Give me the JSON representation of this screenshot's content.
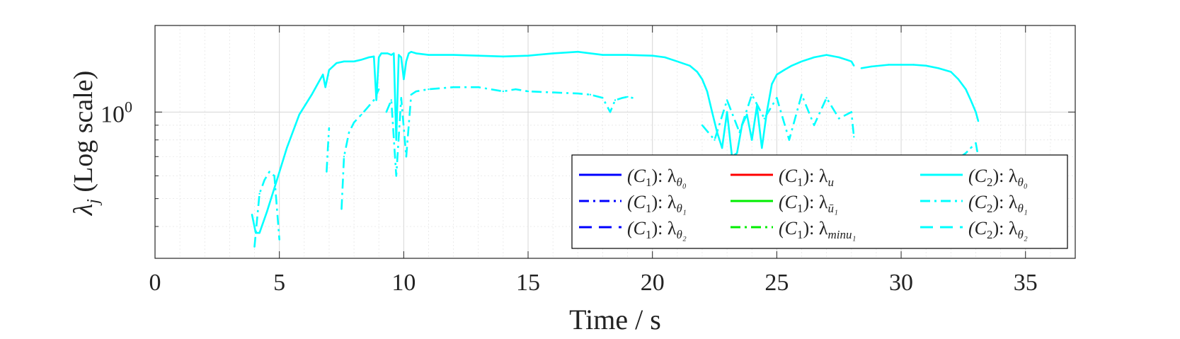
{
  "chart_data": {
    "type": "line",
    "title": "",
    "xlabel": "Time / s",
    "ylabel": "λ_j (Log scale)",
    "ylabel_parts": {
      "symbol": "λ",
      "sub": "j",
      "rest": " (Log scale)"
    },
    "xlim": [
      0,
      37
    ],
    "ylim": [
      0.31,
      2.0
    ],
    "yscale": "log",
    "x_ticks": [
      0,
      5,
      10,
      15,
      20,
      25,
      30,
      35
    ],
    "x_tick_labels": [
      "0",
      "5",
      "10",
      "15",
      "20",
      "25",
      "30",
      "35"
    ],
    "y_tick_label": {
      "base": "10",
      "exp": "0",
      "value": 1.0
    },
    "grid": true,
    "legend_position": "lower-right",
    "colors": {
      "C1_blue": "#0000ff",
      "C1_red": "#ff0000",
      "C1_green": "#00ee00",
      "C2_cyan": "#00ffff"
    },
    "legend": [
      {
        "id": "c1-t0",
        "color": "#0000ff",
        "dash": "solid",
        "pre": "(C",
        "pre_sub": "1",
        "mid": "): λ",
        "sub": "θ₀"
      },
      {
        "id": "c1-t1",
        "color": "#0000ff",
        "dash": "dashdot",
        "pre": "(C",
        "pre_sub": "1",
        "mid": "): λ",
        "sub": "θ₁"
      },
      {
        "id": "c1-t2",
        "color": "#0000ff",
        "dash": "dashed",
        "pre": "(C",
        "pre_sub": "1",
        "mid": "): λ",
        "sub": "θ₂"
      },
      {
        "id": "c1-u",
        "color": "#ff0000",
        "dash": "solid",
        "pre": "(C",
        "pre_sub": "1",
        "mid": "): λ",
        "sub": "u"
      },
      {
        "id": "c1-ubar",
        "color": "#00ee00",
        "dash": "solid",
        "pre": "(C",
        "pre_sub": "1",
        "mid": "): λ",
        "sub": "ū₁"
      },
      {
        "id": "c1-minu",
        "color": "#00ee00",
        "dash": "dashdot",
        "pre": "(C",
        "pre_sub": "1",
        "mid": "): λ",
        "sub": "minu₁"
      },
      {
        "id": "c2-t0",
        "color": "#00ffff",
        "dash": "solid",
        "pre": "(C",
        "pre_sub": "2",
        "mid": "): λ",
        "sub": "θ₀"
      },
      {
        "id": "c2-t1",
        "color": "#00ffff",
        "dash": "dashdot",
        "pre": "(C",
        "pre_sub": "2",
        "mid": "): λ",
        "sub": "θ₁"
      },
      {
        "id": "c2-t2",
        "color": "#00ffff",
        "dash": "dashed",
        "pre": "(C",
        "pre_sub": "2",
        "mid": "): λ",
        "sub": "θ₂"
      }
    ],
    "series": [
      {
        "name": "(C2): λθ0",
        "color": "#00ffff",
        "dash": "solid",
        "segments": [
          {
            "x": [
              3.9,
              4.05,
              4.2,
              4.5,
              4.9,
              5.3,
              5.8,
              6.3,
              6.6,
              6.75,
              6.85,
              7.0,
              7.3,
              7.6,
              8.0,
              8.3,
              8.6,
              8.8,
              8.9,
              9.0,
              9.1,
              9.2,
              9.35,
              9.5,
              9.6,
              9.7,
              9.8,
              9.9,
              10.0,
              10.1,
              10.2,
              10.3,
              10.5,
              11.0,
              12.0,
              13.0,
              14.0,
              15.0,
              16.0,
              17.0,
              18.0,
              19.0,
              20.0,
              20.5,
              21.0,
              21.5,
              21.8,
              22.0,
              22.2,
              22.4,
              22.6,
              22.8,
              23.0,
              23.2,
              23.4,
              23.6,
              23.8,
              24.0,
              24.2,
              24.4,
              24.6,
              24.8,
              25.0,
              25.3,
              25.6,
              26.0,
              26.5,
              27.0,
              27.5,
              27.8,
              28.0,
              28.1
            ],
            "y": [
              0.44,
              0.38,
              0.38,
              0.45,
              0.58,
              0.75,
              0.98,
              1.15,
              1.28,
              1.35,
              1.22,
              1.4,
              1.48,
              1.5,
              1.5,
              1.52,
              1.55,
              1.56,
              1.1,
              1.55,
              1.6,
              1.6,
              1.6,
              1.58,
              1.6,
              0.8,
              1.58,
              1.55,
              1.3,
              1.5,
              1.6,
              1.62,
              1.6,
              1.58,
              1.58,
              1.57,
              1.56,
              1.57,
              1.6,
              1.62,
              1.58,
              1.58,
              1.57,
              1.55,
              1.5,
              1.45,
              1.38,
              1.3,
              1.18,
              1.0,
              0.85,
              0.75,
              1.0,
              0.7,
              0.72,
              0.9,
              0.98,
              0.8,
              1.05,
              0.75,
              1.0,
              1.25,
              1.35,
              1.4,
              1.45,
              1.5,
              1.55,
              1.58,
              1.55,
              1.52,
              1.5,
              1.45
            ]
          },
          {
            "x": [
              28.4,
              28.8,
              29.5,
              30.0,
              30.5,
              31.0,
              31.5,
              32.0,
              32.3,
              32.6,
              32.8,
              33.0,
              33.1
            ],
            "y": [
              1.42,
              1.44,
              1.46,
              1.46,
              1.46,
              1.45,
              1.42,
              1.38,
              1.3,
              1.2,
              1.1,
              1.0,
              0.93
            ]
          }
        ]
      },
      {
        "name": "(C2): λθ1",
        "color": "#00ffff",
        "dash": "dashdot",
        "segments": [
          {
            "x": [
              4.0,
              4.2,
              4.4,
              4.6,
              4.8,
              5.0
            ],
            "y": [
              0.34,
              0.52,
              0.58,
              0.62,
              0.6,
              0.36
            ]
          },
          {
            "x": [
              6.9,
              6.95,
              7.0
            ],
            "y": [
              0.62,
              0.75,
              0.88
            ]
          },
          {
            "x": [
              7.5,
              7.6,
              7.8,
              8.0,
              8.3,
              8.6,
              8.8,
              9.0
            ],
            "y": [
              0.46,
              0.7,
              0.85,
              0.92,
              0.98,
              1.05,
              1.1,
              1.2
            ]
          },
          {
            "x": [
              9.3,
              9.5,
              9.7,
              9.9,
              10.1,
              10.3,
              10.5,
              11.0,
              12.0,
              13.0,
              14.0,
              14.5,
              15.0,
              16.0,
              17.0,
              17.5,
              18.0,
              18.3,
              18.5,
              18.8,
              19.0,
              19.2
            ],
            "y": [
              1.0,
              1.1,
              0.6,
              1.12,
              0.7,
              1.15,
              1.18,
              1.2,
              1.22,
              1.22,
              1.18,
              1.2,
              1.18,
              1.17,
              1.16,
              1.15,
              1.12,
              1.0,
              1.1,
              1.12,
              1.13,
              1.12
            ]
          },
          {
            "x": [
              22.0,
              22.5,
              23.0,
              23.5,
              24.0,
              24.5,
              25.0,
              25.5,
              26.0,
              26.5,
              27.0,
              27.5,
              28.0,
              28.1
            ],
            "y": [
              0.9,
              0.8,
              1.1,
              0.85,
              1.15,
              0.95,
              1.12,
              0.8,
              1.15,
              0.9,
              1.12,
              0.95,
              1.0,
              0.82
            ]
          },
          {
            "x": [
              31.2,
              31.4,
              31.6,
              31.8,
              32.0,
              32.2,
              32.4,
              32.6,
              32.8,
              33.0,
              33.1
            ],
            "y": [
              0.58,
              0.63,
              0.62,
              0.65,
              0.66,
              0.68,
              0.7,
              0.72,
              0.75,
              0.78,
              0.7
            ]
          }
        ]
      }
    ]
  }
}
